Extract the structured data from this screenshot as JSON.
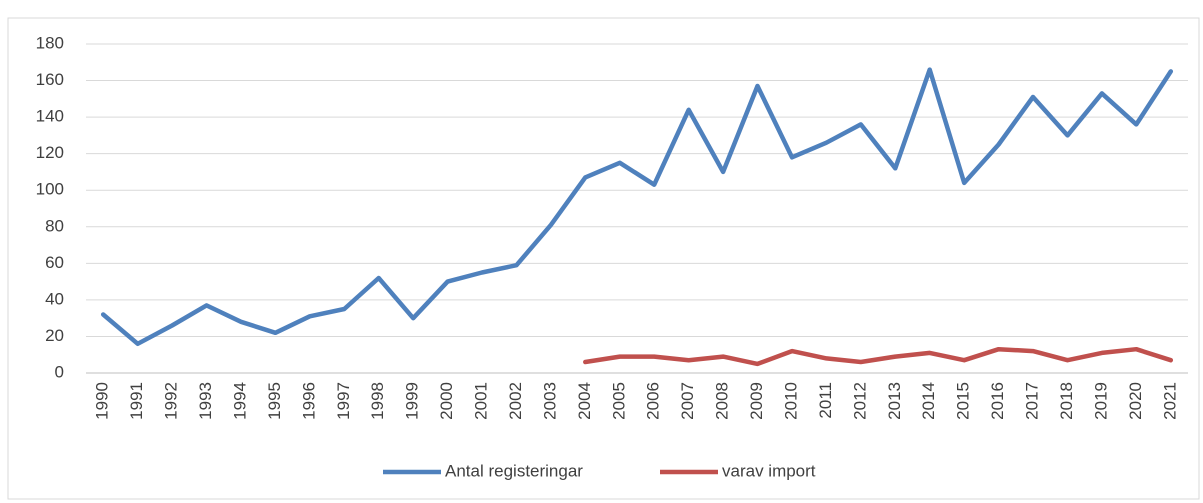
{
  "chart_data": {
    "type": "line",
    "categories": [
      "1990",
      "1991",
      "1992",
      "1993",
      "1994",
      "1995",
      "1996",
      "1997",
      "1998",
      "1999",
      "2000",
      "2001",
      "2002",
      "2003",
      "2004",
      "2005",
      "2006",
      "2007",
      "2008",
      "2009",
      "2010",
      "2011",
      "2012",
      "2013",
      "2014",
      "2015",
      "2016",
      "2017",
      "2018",
      "2019",
      "2020",
      "2021"
    ],
    "series": [
      {
        "name": "Antal registeringar",
        "color": "#4f81bd",
        "values": [
          32,
          16,
          26,
          37,
          28,
          22,
          31,
          35,
          52,
          30,
          50,
          55,
          59,
          81,
          107,
          115,
          103,
          144,
          110,
          157,
          118,
          126,
          136,
          112,
          166,
          104,
          125,
          151,
          130,
          153,
          136,
          165
        ]
      },
      {
        "name": "varav import",
        "color": "#c0504d",
        "values": [
          null,
          null,
          null,
          null,
          null,
          null,
          null,
          null,
          null,
          null,
          null,
          null,
          null,
          null,
          6,
          9,
          9,
          7,
          9,
          5,
          12,
          8,
          6,
          9,
          11,
          7,
          13,
          12,
          7,
          11,
          13,
          7
        ]
      }
    ],
    "ylim": [
      0,
      180
    ],
    "yticks": [
      0,
      20,
      40,
      60,
      80,
      100,
      120,
      140,
      160,
      180
    ],
    "grid": true,
    "legend": "bottom"
  }
}
